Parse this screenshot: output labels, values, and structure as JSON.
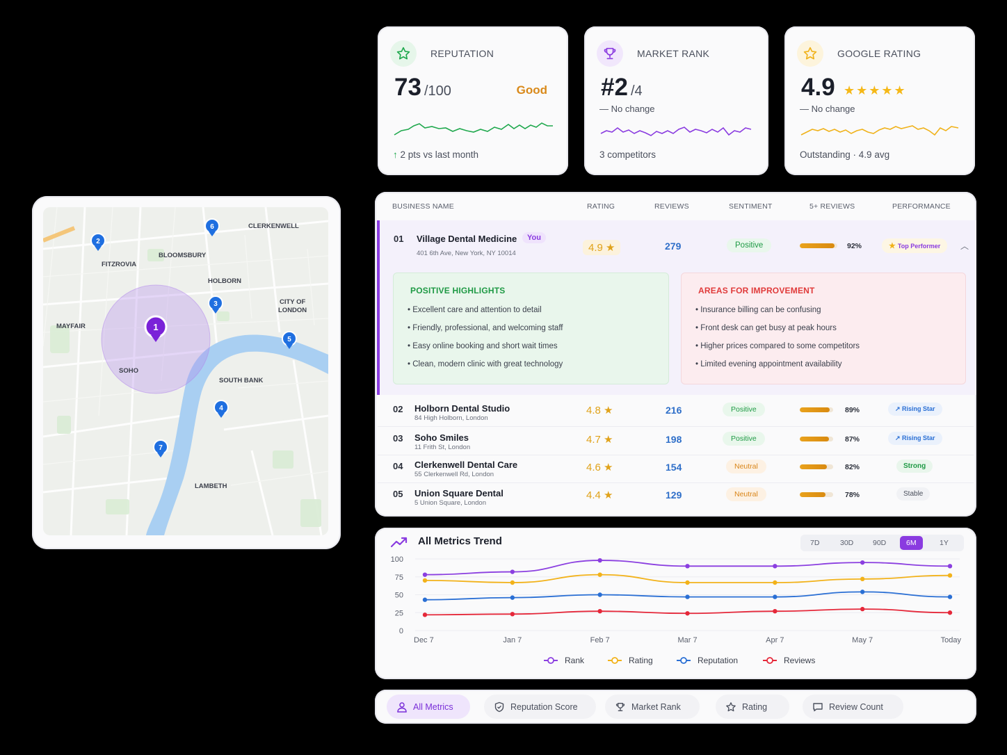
{
  "kpis": {
    "reputation": {
      "title": "REPUTATION",
      "value": "73",
      "suffix": "/100",
      "status": "Good",
      "footer": "2 pts vs last month",
      "footer_icon": "arrow-up-icon",
      "icon": "star-icon",
      "color": "#1fa84d"
    },
    "market_rank": {
      "title": "MARKET RANK",
      "value": "#2",
      "suffix": "/4",
      "note": "No change",
      "footer": "3 competitors",
      "icon": "trophy-icon",
      "color": "#8a3be0"
    },
    "google_rating": {
      "title": "GOOGLE RATING",
      "value": "4.9",
      "stars": "★★★★★",
      "note": "No change",
      "footer": "Outstanding · 4.9 avg",
      "icon": "star-icon",
      "color": "#f0b21a"
    }
  },
  "map": {
    "areas": [
      "CLERKENWELL",
      "BLOOMSBURY",
      "FITZROVIA",
      "HOLBORN",
      "CITY OF",
      "LONDON",
      "MAYFAIR",
      "SOHO",
      "SOUTH BANK",
      "LAMBETH"
    ],
    "pins": [
      "1",
      "2",
      "3",
      "4",
      "5",
      "6",
      "7"
    ]
  },
  "table": {
    "headers": [
      "BUSINESS NAME",
      "RATING",
      "REVIEWS",
      "SENTIMENT",
      "5+ REVIEWS",
      "PERFORMANCE"
    ],
    "rows": [
      {
        "rank": "01",
        "name": "Village Dental Medicine",
        "badge": "You",
        "address": "401 6th Ave, New York, NY 10014",
        "rating": "4.9 ★",
        "reviews": "279",
        "sentiment": "Positive",
        "pct": "92%",
        "pct_value": 0.92,
        "performance": "Top Performer"
      },
      {
        "rank": "02",
        "name": "Holborn Dental Studio",
        "address": "84 High Holborn, London",
        "rating": "4.8 ★",
        "reviews": "216",
        "sentiment": "Positive",
        "pct": "89%",
        "pct_value": 0.89,
        "performance": "Rising Star"
      },
      {
        "rank": "03",
        "name": "Soho Smiles",
        "address": "11 Frith St, London",
        "rating": "4.7 ★",
        "reviews": "198",
        "sentiment": "Positive",
        "pct": "87%",
        "pct_value": 0.87,
        "performance": "Rising Star"
      },
      {
        "rank": "04",
        "name": "Clerkenwell Dental Care",
        "address": "55 Clerkenwell Rd, London",
        "rating": "4.6 ★",
        "reviews": "154",
        "sentiment": "Neutral",
        "pct": "82%",
        "pct_value": 0.82,
        "performance": "Strong"
      },
      {
        "rank": "05",
        "name": "Union Square Dental",
        "address": "5 Union Square, London",
        "rating": "4.4 ★",
        "reviews": "129",
        "sentiment": "Neutral",
        "pct": "78%",
        "pct_value": 0.78,
        "performance": "Stable"
      }
    ],
    "highlights": {
      "positive_title": "POSITIVE HIGHLIGHTS",
      "positive": [
        "Excellent care and attention to detail",
        "Friendly, professional, and welcoming staff",
        "Easy online booking and short wait times",
        "Clean, modern clinic with great technology"
      ],
      "improve_title": "AREAS FOR IMPROVEMENT",
      "improve": [
        "Insurance billing can be confusing",
        "Front desk can get busy at peak hours",
        "Higher prices compared to some competitors",
        "Limited evening appointment availability"
      ]
    }
  },
  "trend": {
    "title": "All Metrics Trend",
    "ranges": [
      "7D",
      "30D",
      "90D",
      "6M",
      "1Y"
    ],
    "active_range": "6M"
  },
  "chart_data": {
    "type": "line",
    "title": "All Metrics Trend",
    "x": [
      "Dec 7",
      "Jan 7",
      "Feb 7",
      "Mar 7",
      "Apr 7",
      "May 7",
      "Today"
    ],
    "ylim": [
      0,
      100
    ],
    "yticks": [
      0,
      25,
      50,
      75,
      100
    ],
    "legend_position": "bottom",
    "series": [
      {
        "name": "Rank",
        "color": "#8b3fe0",
        "values": [
          78,
          82,
          98,
          90,
          90,
          95,
          90
        ]
      },
      {
        "name": "Rating",
        "color": "#f2b21a",
        "values": [
          70,
          67,
          78,
          67,
          67,
          72,
          77
        ]
      },
      {
        "name": "Reputation",
        "color": "#2a6fd4",
        "values": [
          43,
          46,
          50,
          47,
          47,
          54,
          47
        ]
      },
      {
        "name": "Reviews",
        "color": "#e5283a",
        "values": [
          22,
          23,
          27,
          24,
          27,
          30,
          25
        ]
      }
    ]
  },
  "nav": {
    "items": [
      {
        "label": "All Metrics",
        "icon": "person-icon"
      },
      {
        "label": "Reputation Score",
        "icon": "shield-icon"
      },
      {
        "label": "Market Rank",
        "icon": "trophy-icon"
      },
      {
        "label": "Rating",
        "icon": "star-icon"
      },
      {
        "label": "Review Count",
        "icon": "message-icon"
      }
    ]
  }
}
